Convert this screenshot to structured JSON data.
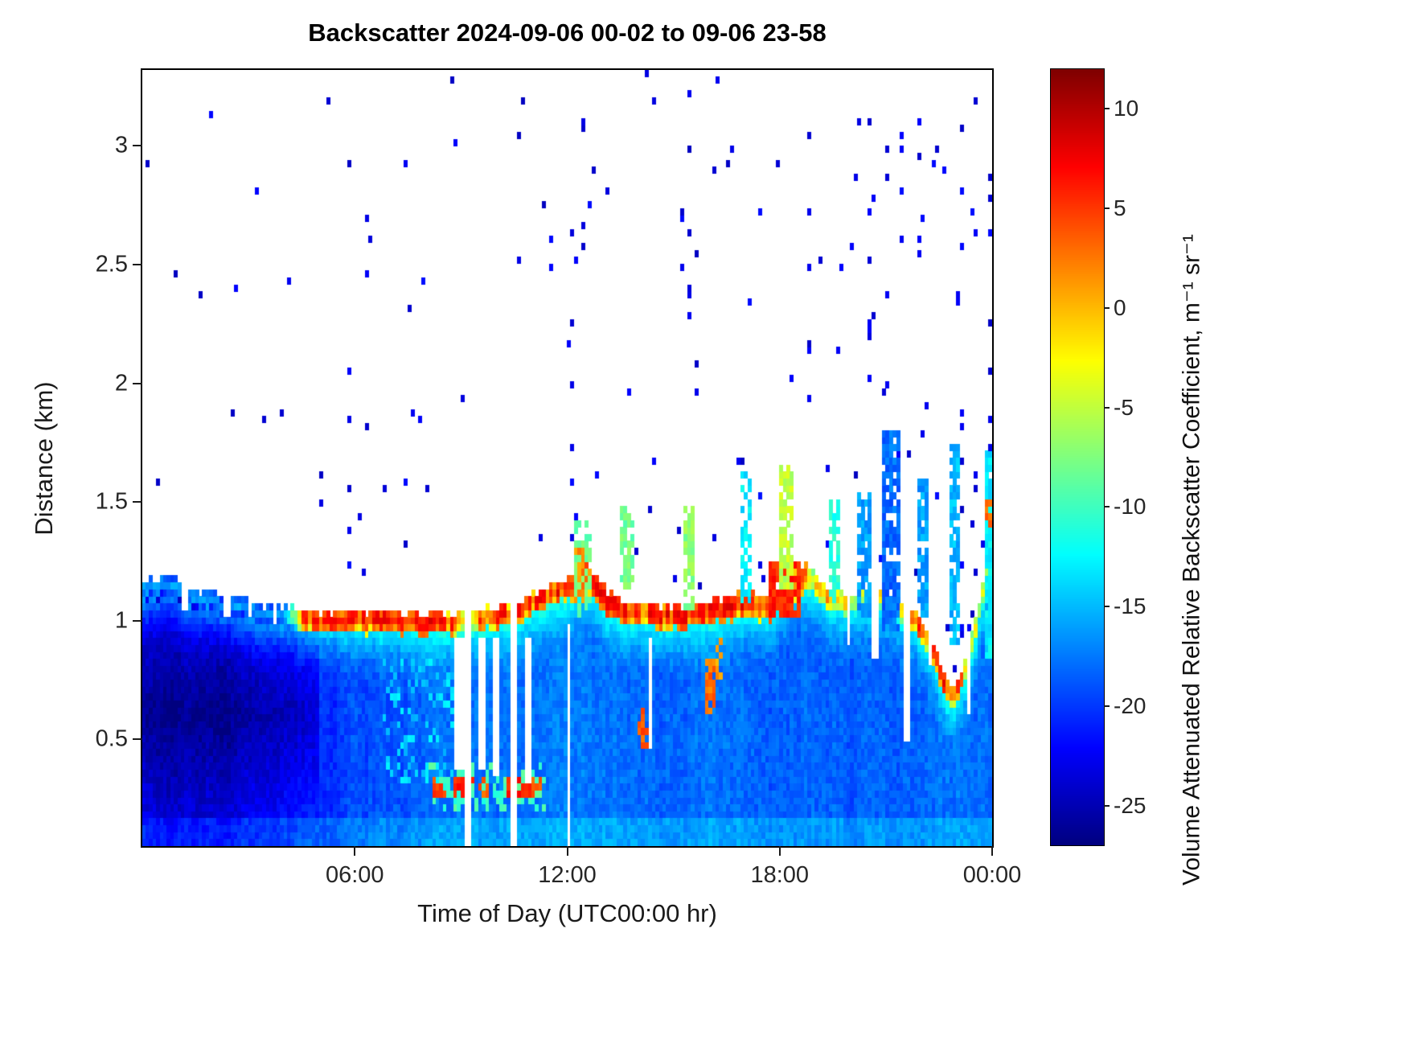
{
  "title": "Backscatter 2024-09-06 00-02 to 09-06 23-58",
  "axes": {
    "x": {
      "label": "Time of Day (UTC00:00 hr)",
      "range": [
        0,
        24
      ],
      "ticks": [
        {
          "v": 6,
          "label": "06:00"
        },
        {
          "v": 12,
          "label": "12:00"
        },
        {
          "v": 18,
          "label": "18:00"
        },
        {
          "v": 24,
          "label": "00:00"
        }
      ]
    },
    "y": {
      "label": "Distance (km)",
      "range": [
        0.05,
        3.32
      ],
      "ticks": [
        {
          "v": 0.5,
          "label": "0.5"
        },
        {
          "v": 1,
          "label": "1"
        },
        {
          "v": 1.5,
          "label": "1.5"
        },
        {
          "v": 2,
          "label": "2"
        },
        {
          "v": 2.5,
          "label": "2.5"
        },
        {
          "v": 3,
          "label": "3"
        }
      ]
    }
  },
  "colorbar": {
    "label": "Volume Attenuated Relative Backscatter Coefficient, m⁻¹ sr⁻¹",
    "range": [
      -27,
      12
    ],
    "colormap": "jet",
    "ticks": [
      {
        "v": 10,
        "label": "10"
      },
      {
        "v": 5,
        "label": "5"
      },
      {
        "v": 0,
        "label": "0"
      },
      {
        "v": -5,
        "label": "-5"
      },
      {
        "v": -10,
        "label": "-10"
      },
      {
        "v": -15,
        "label": "-15"
      },
      {
        "v": -20,
        "label": "-20"
      },
      {
        "v": -25,
        "label": "-25"
      }
    ]
  },
  "chart_data": {
    "type": "heatmap",
    "title": "Backscatter 2024-09-06 00-02 to 09-06 23-58",
    "x_unit": "hours (UTC time of day)",
    "y_unit": "km (distance/height)",
    "value_unit": "volume attenuated relative backscatter coefficient, m⁻¹ sr⁻¹ (log scale)",
    "x_range": [
      0,
      24
    ],
    "y_range": [
      0.05,
      3.32
    ],
    "value_range": [
      -27,
      12
    ],
    "grid": {
      "nx": 240,
      "ny": 112
    },
    "no_data_color": "#ffffff",
    "description": "Ceilometer/lidar time-height backscatter curtain for 2024-09-06 00:02 to 23:58 UTC. A continuous aerosol boundary layer fills heights below ~1.0-1.2 km (blue, -24 to -16), capped by a strong red backscatter band (>0 to +8) near 1.0 km from ~04:30 onward. Precipitation gaps (white columns) appear 09:00-11:00 with intense low echoes (red) near 0.3 km. The cap lifts to ~1.2-1.3 km around 12:20 with a lofted orange plume. From 13:00-24:00 intermittent cloud/virga columns (cyan-blue, some red) reach 1.4-1.8 km; the cap dips to ~0.65 km near 22:50 then rises to ~1.7 km by 24:00. Sparse dark-blue noise speckles are scattered up to 3.3 km; white denotes no data.",
    "render": {
      "seed": 1234567,
      "layer_top_km": [
        [
          0,
          1.13
        ],
        [
          0.7,
          1.16
        ],
        [
          1.5,
          1.1
        ],
        [
          2.5,
          1.07
        ],
        [
          3.5,
          1.03
        ],
        [
          5,
          1.0
        ],
        [
          7,
          1.0
        ],
        [
          8.5,
          0.99
        ],
        [
          9.5,
          1.0
        ],
        [
          10.5,
          1.03
        ],
        [
          11,
          1.08
        ],
        [
          11.7,
          1.12
        ],
        [
          12.1,
          1.14
        ],
        [
          12.5,
          1.2
        ],
        [
          12.9,
          1.12
        ],
        [
          13.3,
          1.06
        ],
        [
          14,
          1.04
        ],
        [
          15,
          1.02
        ],
        [
          16,
          1.04
        ],
        [
          17,
          1.07
        ],
        [
          17.8,
          1.05
        ],
        [
          18.3,
          1.15
        ],
        [
          18.8,
          1.18
        ],
        [
          19.3,
          1.1
        ],
        [
          20,
          1.08
        ],
        [
          20.8,
          1.12
        ],
        [
          21.3,
          1.05
        ],
        [
          21.8,
          1.02
        ],
        [
          22.3,
          0.9
        ],
        [
          22.8,
          0.68
        ],
        [
          23.1,
          0.72
        ],
        [
          23.5,
          0.95
        ],
        [
          23.8,
          1.15
        ],
        [
          24,
          1.4
        ]
      ],
      "band_strength": [
        [
          0,
          0
        ],
        [
          4,
          0
        ],
        [
          4.4,
          0.5
        ],
        [
          4.7,
          1
        ],
        [
          8.6,
          1
        ],
        [
          9,
          0.7
        ],
        [
          9.6,
          0.8
        ],
        [
          10.2,
          0.9
        ],
        [
          13.6,
          1
        ],
        [
          14.2,
          0.8
        ],
        [
          14.6,
          1
        ],
        [
          17,
          1
        ],
        [
          18.6,
          1
        ],
        [
          19,
          0.55
        ],
        [
          19.6,
          0.7
        ],
        [
          20.2,
          0.5
        ],
        [
          20.9,
          0.75
        ],
        [
          21.4,
          0.5
        ],
        [
          22,
          0.85
        ],
        [
          23,
          0.8
        ],
        [
          23.5,
          0.6
        ],
        [
          24,
          0.3
        ]
      ],
      "band_halfwidth": [
        [
          0,
          0.045
        ],
        [
          12,
          0.05
        ],
        [
          12.3,
          0.09
        ],
        [
          12.7,
          0.06
        ],
        [
          17.7,
          0.06
        ],
        [
          18.5,
          0.08
        ],
        [
          19,
          0.05
        ],
        [
          24,
          0.05
        ]
      ],
      "base_value": [
        [
          0,
          -22.5
        ],
        [
          2,
          -23
        ],
        [
          4,
          -21.5
        ],
        [
          6,
          -19.5
        ],
        [
          8,
          -18
        ],
        [
          10,
          -18
        ],
        [
          12,
          -17.5
        ],
        [
          14,
          -18
        ],
        [
          16,
          -18
        ],
        [
          18,
          -18.5
        ],
        [
          20,
          -18.5
        ],
        [
          22,
          -18
        ],
        [
          24,
          -17.5
        ]
      ],
      "gaps": [
        [
          8.85,
          9.05,
          0.36,
          0.93
        ],
        [
          9.15,
          9.3,
          0,
          1.2
        ],
        [
          9.5,
          9.65,
          0.36,
          0.93
        ],
        [
          9.95,
          10.1,
          0.33,
          0.93
        ],
        [
          10.4,
          10.55,
          0,
          1.2
        ],
        [
          10.85,
          11.0,
          0.3,
          0.93
        ],
        [
          12.03,
          12.13,
          0,
          0.98
        ],
        [
          14.33,
          14.43,
          0.45,
          0.92
        ],
        [
          19.9,
          20.0,
          0.9,
          1.45
        ],
        [
          20.65,
          20.78,
          0.85,
          1.45
        ],
        [
          21.55,
          21.7,
          0.5,
          1.65
        ],
        [
          22.2,
          22.32,
          0.8,
          1.45
        ],
        [
          23.3,
          23.42,
          0.6,
          1.35
        ],
        [
          1.15,
          1.25,
          1.05,
          1.25
        ],
        [
          2.35,
          2.45,
          1.0,
          1.2
        ],
        [
          3.0,
          3.1,
          1.02,
          1.2
        ],
        [
          3.7,
          3.8,
          0.98,
          1.2
        ]
      ],
      "patches": [
        [
          8.2,
          8.65,
          0.25,
          0.34,
          5,
          0.95
        ],
        [
          8.85,
          9.35,
          0.24,
          0.33,
          6,
          0.95
        ],
        [
          9.5,
          9.8,
          0.25,
          0.33,
          4,
          0.9
        ],
        [
          10.3,
          10.95,
          0.24,
          0.34,
          6,
          0.95
        ],
        [
          11.05,
          11.3,
          0.26,
          0.35,
          4,
          0.9
        ],
        [
          8.1,
          11.4,
          0.2,
          0.4,
          -10,
          0.35
        ],
        [
          6.8,
          9.2,
          0.3,
          0.85,
          -14,
          0.22
        ],
        [
          12.25,
          12.6,
          1.08,
          1.33,
          2,
          0.92
        ],
        [
          12.2,
          12.7,
          1.0,
          1.42,
          -8,
          0.5
        ],
        [
          13.55,
          13.85,
          1.12,
          1.47,
          -8,
          0.75
        ],
        [
          14.05,
          14.3,
          0.45,
          0.62,
          4,
          0.8
        ],
        [
          15.3,
          15.6,
          1.05,
          1.5,
          -7,
          0.6
        ],
        [
          15.9,
          16.15,
          0.6,
          0.85,
          3,
          0.7
        ],
        [
          16.2,
          16.4,
          0.72,
          0.92,
          1,
          0.6
        ],
        [
          16.95,
          17.2,
          1.08,
          1.62,
          -13,
          0.7
        ],
        [
          17.75,
          18.6,
          1.0,
          1.25,
          6,
          0.9
        ],
        [
          18.05,
          18.35,
          1.12,
          1.65,
          -5,
          0.75
        ],
        [
          19.4,
          19.68,
          1.08,
          1.5,
          -11,
          0.7
        ],
        [
          20.2,
          20.55,
          1.02,
          1.55,
          -16,
          0.8
        ],
        [
          20.95,
          21.35,
          0.95,
          1.8,
          -18,
          0.85
        ],
        [
          21.9,
          22.15,
          1.0,
          1.6,
          -16,
          0.8
        ],
        [
          22.8,
          23.05,
          0.9,
          1.75,
          -15,
          0.8
        ],
        [
          23.8,
          24,
          0.85,
          1.72,
          -13,
          0.9
        ],
        [
          23.82,
          23.97,
          1.38,
          1.52,
          3,
          0.85
        ]
      ],
      "dot_columns": [
        5.85,
        7.45,
        12.08,
        12.2,
        12.45,
        15.45,
        15.62,
        18.85,
        20.6,
        21.05,
        21.45,
        21.95,
        23.15,
        23.5,
        23.92
      ],
      "dot_base_prob": 0.005,
      "dot_afternoon_extra": 0.012
    }
  }
}
